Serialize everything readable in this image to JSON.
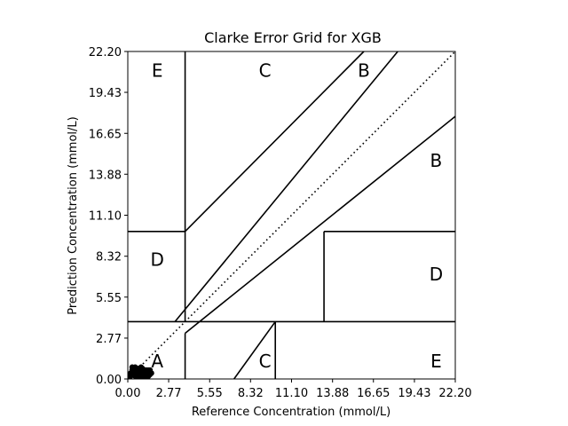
{
  "chart_data": {
    "type": "scatter",
    "title": "Clarke Error Grid for XGB",
    "xlabel": "Reference Concentration (mmol/L)",
    "ylabel": "Prediction Concentration (mmol/L)",
    "xlim": [
      0,
      22.2
    ],
    "ylim": [
      0,
      22.2
    ],
    "xticks": [
      "0.00",
      "2.77",
      "5.55",
      "8.32",
      "11.10",
      "13.88",
      "16.65",
      "19.43",
      "22.20"
    ],
    "yticks": [
      "0.00",
      "2.77",
      "5.55",
      "8.32",
      "11.10",
      "13.88",
      "16.65",
      "19.43",
      "22.20"
    ],
    "grid": false,
    "zone_lines": [
      [
        [
          0,
          3.885
        ],
        [
          22.2,
          3.885
        ]
      ],
      [
        [
          0,
          10.0
        ],
        [
          3.885,
          10.0
        ]
      ],
      [
        [
          3.885,
          0
        ],
        [
          3.885,
          3.1
        ]
      ],
      [
        [
          3.885,
          3.885
        ],
        [
          3.885,
          22.2
        ]
      ],
      [
        [
          3.885,
          10.0
        ],
        [
          16.0,
          22.2
        ]
      ],
      [
        [
          3.885,
          3.1
        ],
        [
          22.2,
          17.8
        ]
      ],
      [
        [
          3.2,
          3.885
        ],
        [
          18.3,
          22.2
        ]
      ],
      [
        [
          7.2,
          0
        ],
        [
          10.0,
          3.885
        ]
      ],
      [
        [
          10.0,
          0
        ],
        [
          10.0,
          3.885
        ]
      ],
      [
        [
          13.3,
          3.885
        ],
        [
          13.3,
          10.0
        ]
      ],
      [
        [
          13.3,
          10.0
        ],
        [
          22.2,
          10.0
        ]
      ]
    ],
    "identity_line": [
      [
        0,
        0
      ],
      [
        22.2,
        22.2
      ]
    ],
    "zone_labels": [
      {
        "text": "E",
        "x": 2.0,
        "y": 20.9
      },
      {
        "text": "C",
        "x": 9.3,
        "y": 20.9
      },
      {
        "text": "B",
        "x": 16.0,
        "y": 20.9
      },
      {
        "text": "B",
        "x": 20.9,
        "y": 14.8
      },
      {
        "text": "D",
        "x": 2.0,
        "y": 8.1
      },
      {
        "text": "D",
        "x": 20.9,
        "y": 7.1
      },
      {
        "text": "A",
        "x": 2.0,
        "y": 1.2
      },
      {
        "text": "C",
        "x": 9.3,
        "y": 1.2
      },
      {
        "text": "E",
        "x": 20.9,
        "y": 1.2
      }
    ],
    "points": [
      [
        0.3,
        0.3
      ],
      [
        0.4,
        0.5
      ],
      [
        0.5,
        0.3
      ],
      [
        0.6,
        0.4
      ],
      [
        0.5,
        0.6
      ],
      [
        0.7,
        0.5
      ],
      [
        0.8,
        0.4
      ],
      [
        0.9,
        0.6
      ],
      [
        1.0,
        0.3
      ],
      [
        1.1,
        0.5
      ],
      [
        1.2,
        0.4
      ],
      [
        1.3,
        0.6
      ],
      [
        0.4,
        0.7
      ],
      [
        0.6,
        0.7
      ],
      [
        0.8,
        0.2
      ],
      [
        1.0,
        0.7
      ],
      [
        1.2,
        0.2
      ],
      [
        1.4,
        0.4
      ],
      [
        1.5,
        0.5
      ],
      [
        0.3,
        0.6
      ],
      [
        0.2,
        0.2
      ],
      [
        0.7,
        0.2
      ],
      [
        0.9,
        0.3
      ],
      [
        1.1,
        0.2
      ],
      [
        1.3,
        0.3
      ],
      [
        1.4,
        0.6
      ],
      [
        0.5,
        0.2
      ],
      [
        0.6,
        0.5
      ],
      [
        0.8,
        0.6
      ],
      [
        1.0,
        0.5
      ],
      [
        1.2,
        0.6
      ],
      [
        1.3,
        0.2
      ],
      [
        0.4,
        0.4
      ],
      [
        0.7,
        0.7
      ],
      [
        0.9,
        0.5
      ],
      [
        1.1,
        0.4
      ],
      [
        1.5,
        0.3
      ],
      [
        0.2,
        0.4
      ],
      [
        1.6,
        0.4
      ],
      [
        0.3,
        0.8
      ],
      [
        0.5,
        0.8
      ],
      [
        0.6,
        0.2
      ],
      [
        0.8,
        0.7
      ],
      [
        1.0,
        0.2
      ],
      [
        1.2,
        0.3
      ],
      [
        1.4,
        0.2
      ],
      [
        1.5,
        0.6
      ],
      [
        0.9,
        0.8
      ]
    ]
  }
}
